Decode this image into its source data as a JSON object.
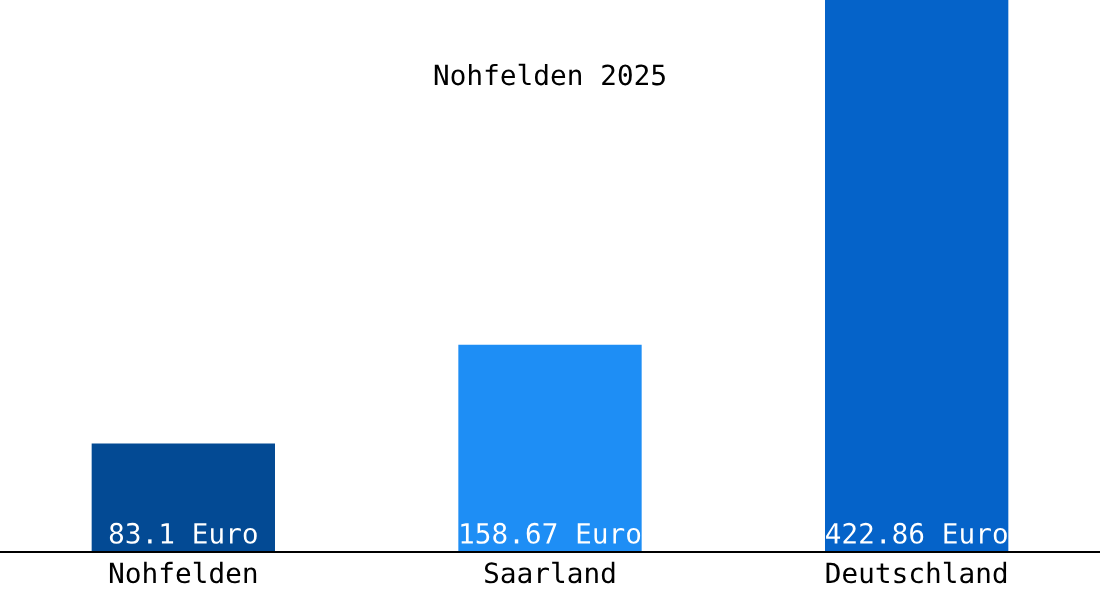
{
  "chart_data": {
    "type": "bar",
    "title": "Nohfelden 2025",
    "categories": [
      "Nohfelden",
      "Saarland",
      "Deutschland"
    ],
    "values": [
      83.1,
      158.67,
      422.86
    ],
    "colors": [
      "#034a94",
      "#1e8ef5",
      "#0563c9"
    ],
    "value_labels": [
      "83.1 Euro",
      "158.67 Euro",
      "422.86 Euro"
    ],
    "tick_labels": "x",
    "grid": false,
    "legend": false
  }
}
